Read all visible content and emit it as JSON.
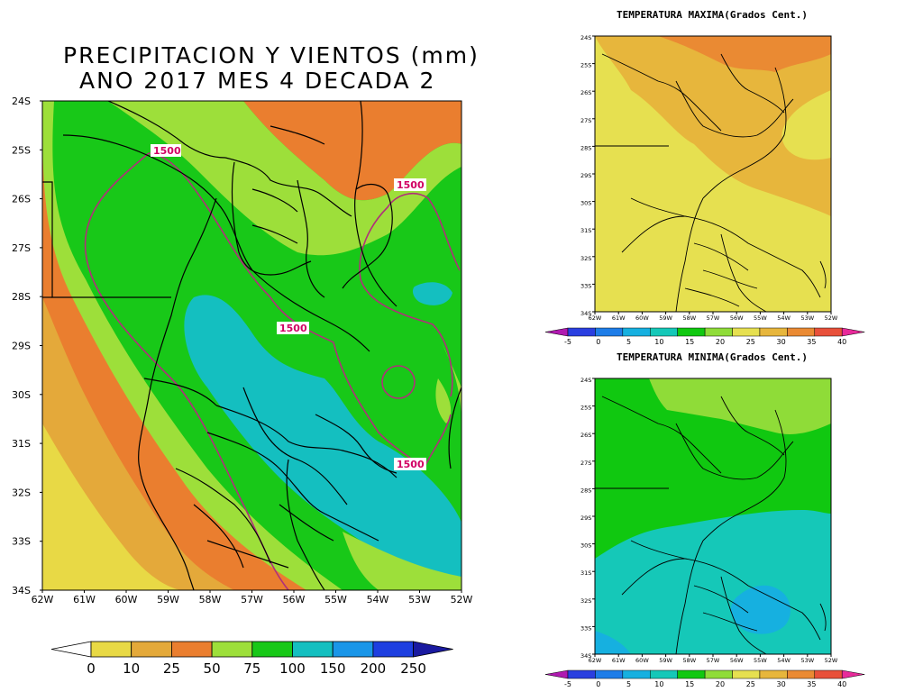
{
  "main_map": {
    "title_line1": "PRECIPITACION Y VIENTOS (mm)",
    "title_line2": "ANO 2017 MES 4 DECADA 2",
    "lat_labels": [
      "24S",
      "25S",
      "26S",
      "27S",
      "28S",
      "29S",
      "30S",
      "31S",
      "32S",
      "33S",
      "34S"
    ],
    "lon_labels": [
      "62W",
      "61W",
      "60W",
      "59W",
      "58W",
      "57W",
      "56W",
      "55W",
      "54W",
      "53W",
      "52W"
    ],
    "contour_labels": [
      "1500",
      "1500",
      "1500",
      "1500"
    ],
    "colorbar": {
      "ticks": [
        "0",
        "10",
        "25",
        "50",
        "75",
        "100",
        "150",
        "200",
        "250"
      ],
      "colors": [
        "#ffffff",
        "#e8d945",
        "#e4a93a",
        "#ea7e2f",
        "#9ddf3a",
        "#18c818",
        "#14bfc0",
        "#1a96e8",
        "#1e3fe0",
        "#1a1aa0"
      ]
    }
  },
  "tmax_map": {
    "title": "TEMPERATURA MAXIMA(Grados Cent.)",
    "lat_labels": [
      "24S",
      "25S",
      "26S",
      "27S",
      "28S",
      "29S",
      "30S",
      "31S",
      "32S",
      "33S",
      "34S"
    ],
    "lon_labels": [
      "62W",
      "61W",
      "60W",
      "59W",
      "58W",
      "57W",
      "56W",
      "55W",
      "54W",
      "53W",
      "52W"
    ],
    "colorbar": {
      "ticks": [
        "-5",
        "0",
        "5",
        "10",
        "15",
        "20",
        "25",
        "30",
        "35",
        "40"
      ]
    }
  },
  "tmin_map": {
    "title": "TEMPERATURA MINIMA(Grados Cent.)",
    "lat_labels": [
      "24S",
      "25S",
      "26S",
      "27S",
      "28S",
      "29S",
      "30S",
      "31S",
      "32S",
      "33S",
      "34S"
    ],
    "lon_labels": [
      "62W",
      "61W",
      "60W",
      "59W",
      "58W",
      "57W",
      "56W",
      "55W",
      "54W",
      "53W",
      "52W"
    ],
    "colorbar": {
      "ticks": [
        "-5",
        "0",
        "5",
        "10",
        "15",
        "20",
        "25",
        "30",
        "35",
        "40"
      ]
    }
  },
  "temp_colors": [
    "#b01ab0",
    "#2a3fe0",
    "#1e7de8",
    "#16b0e0",
    "#15c8b8",
    "#10c810",
    "#8fdc38",
    "#e6e050",
    "#e7b63c",
    "#ea8a33",
    "#e8503a",
    "#e82a9a"
  ]
}
